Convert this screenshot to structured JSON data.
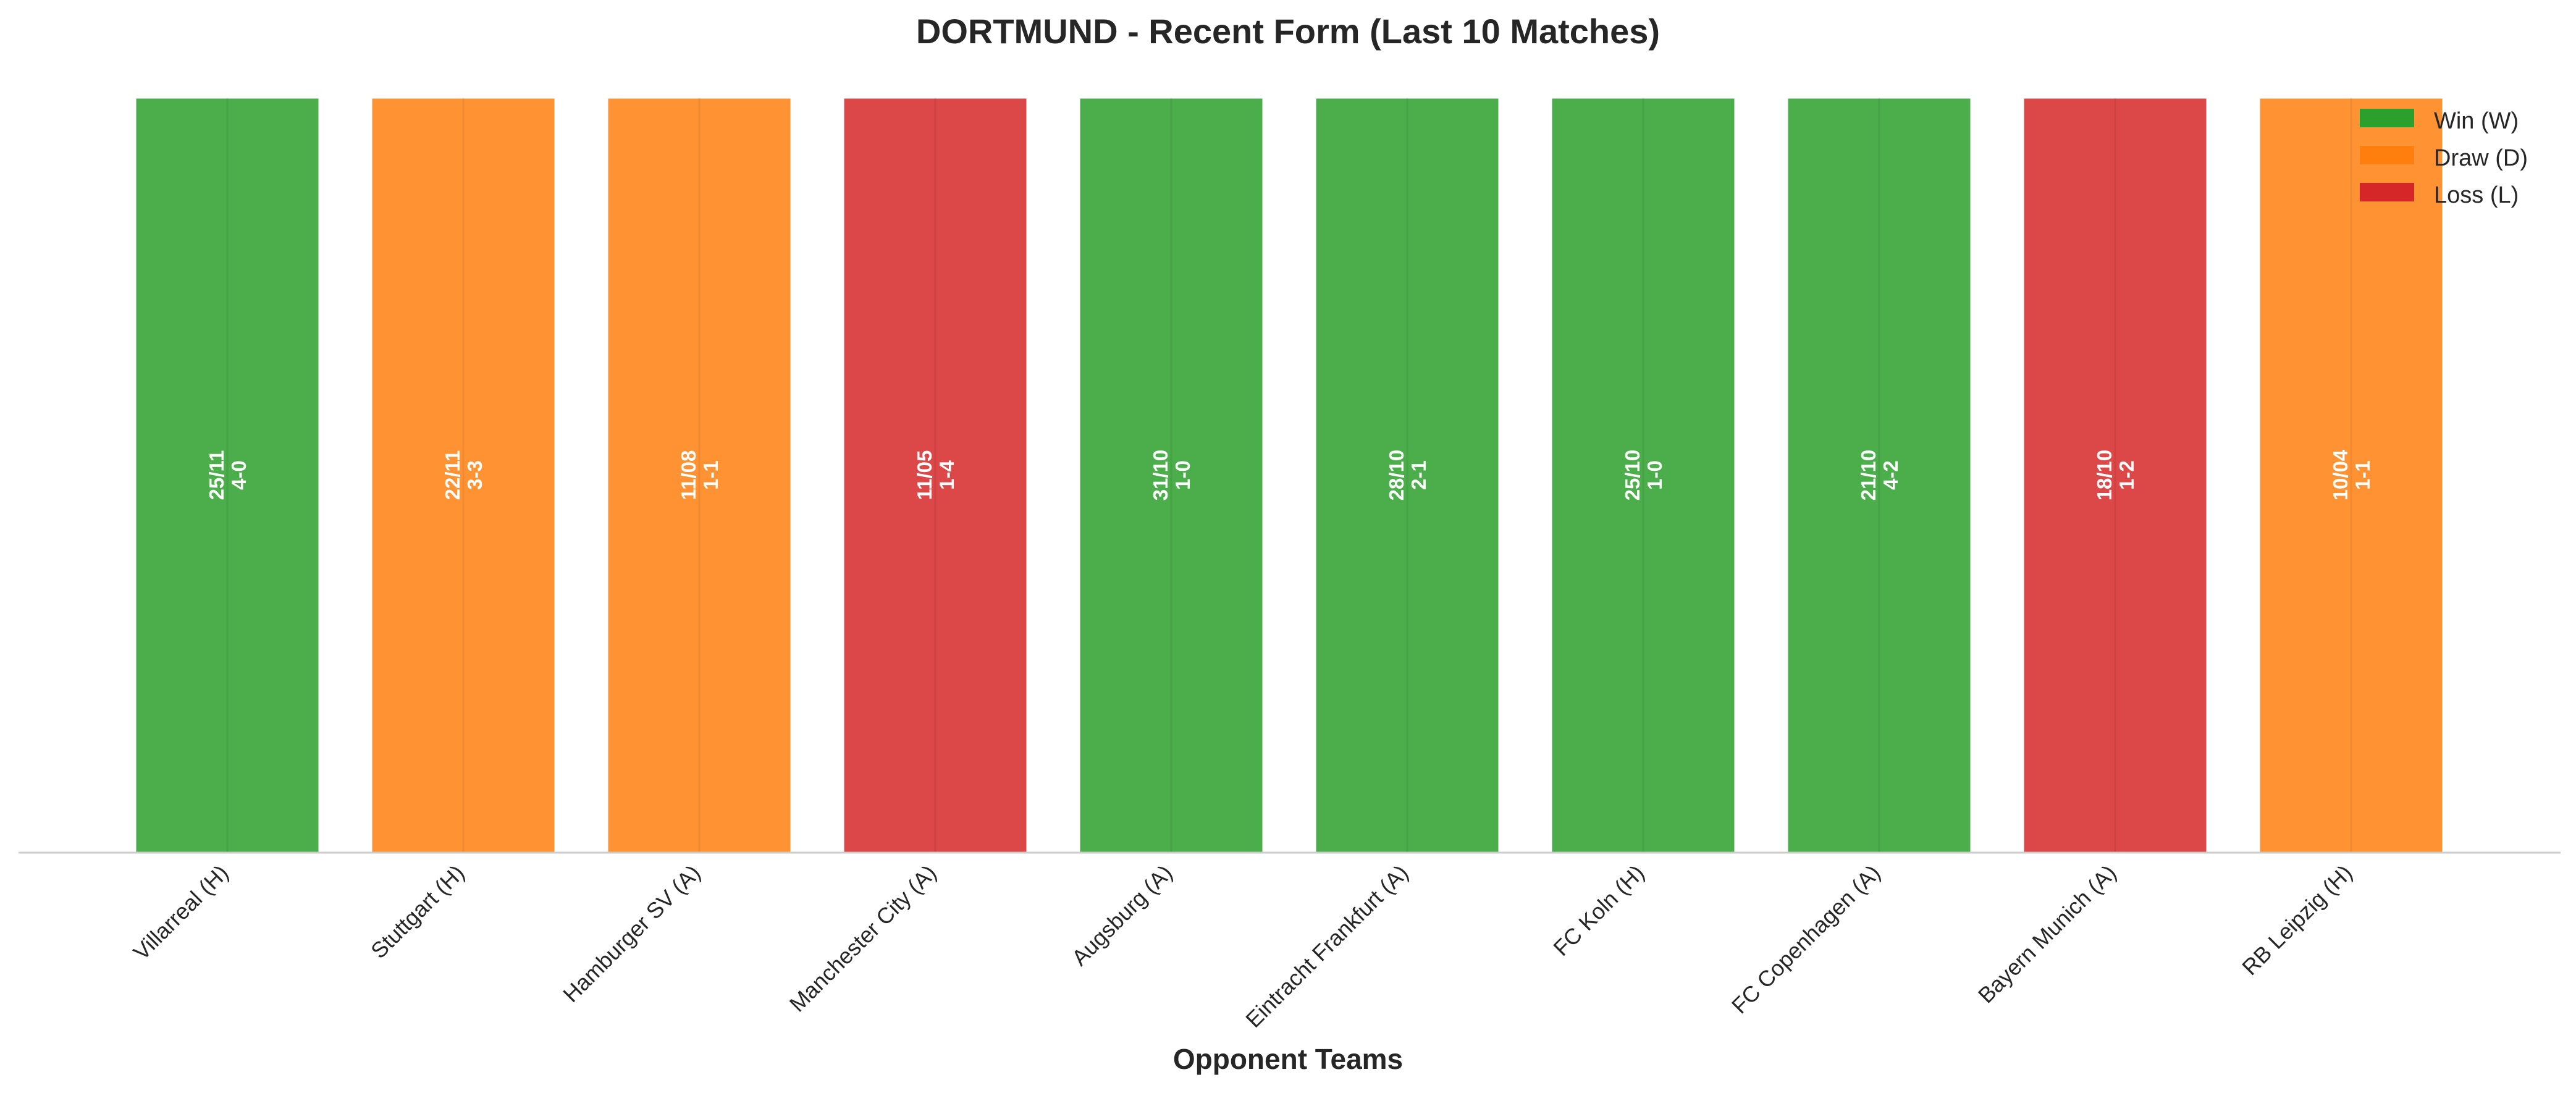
{
  "chart_data": {
    "type": "bar",
    "title": "DORTMUND - Recent Form (Last 10 Matches)",
    "xlabel": "Opponent Teams",
    "ylabel": "",
    "ylim": [
      0,
      1
    ],
    "grid": false,
    "legend_position": "top-right",
    "categories": [
      "Villarreal (H)",
      "Stuttgart (H)",
      "Hamburger SV (A)",
      "Manchester City (A)",
      "Augsburg (A)",
      "Eintracht Frankfurt (A)",
      "FC Koln (H)",
      "FC Copenhagen (A)",
      "Bayern Munich (A)",
      "RB Leipzig (H)"
    ],
    "values": [
      1,
      1,
      1,
      1,
      1,
      1,
      1,
      1,
      1,
      1
    ],
    "results": [
      "W",
      "D",
      "D",
      "L",
      "W",
      "W",
      "W",
      "W",
      "L",
      "D"
    ],
    "dates": [
      "25/11",
      "22/11",
      "11/08",
      "11/05",
      "31/10",
      "28/10",
      "25/10",
      "21/10",
      "18/10",
      "10/04"
    ],
    "scores": [
      "4-0",
      "3-3",
      "1-1",
      "1-4",
      "1-0",
      "2-1",
      "1-0",
      "4-2",
      "1-2",
      "1-1"
    ],
    "legend": [
      {
        "key": "W",
        "label": "Win (W)",
        "color": "#2ca02c"
      },
      {
        "key": "D",
        "label": "Draw (D)",
        "color": "#ff7f0e"
      },
      {
        "key": "L",
        "label": "Loss (L)",
        "color": "#d62728"
      }
    ],
    "bar_alpha": 0.85
  }
}
